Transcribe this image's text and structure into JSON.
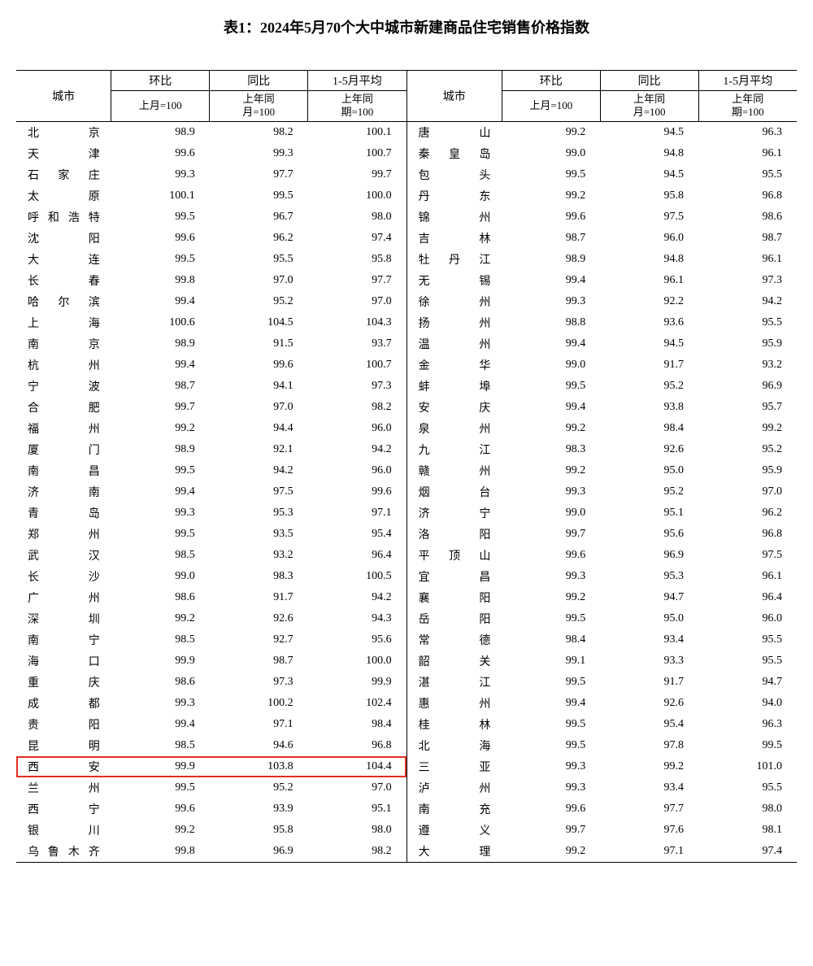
{
  "title": "表1：2024年5月70个大中城市新建商品住宅销售价格指数",
  "headers": {
    "city": "城市",
    "mom": "环比",
    "yoy": "同比",
    "avg": "1-5月平均",
    "mom_sub": "上月=100",
    "yoy_sub": "上年同\n月=100",
    "avg_sub": "上年同\n期=100"
  },
  "highlight_row_index_left": 31,
  "highlight_color": "#e03020",
  "rows_left": [
    {
      "city": "北京",
      "mom": "98.9",
      "yoy": "98.2",
      "avg": "100.1"
    },
    {
      "city": "天津",
      "mom": "99.6",
      "yoy": "99.3",
      "avg": "100.7"
    },
    {
      "city": "石家庄",
      "mom": "99.3",
      "yoy": "97.7",
      "avg": "99.7"
    },
    {
      "city": "太原",
      "mom": "100.1",
      "yoy": "99.5",
      "avg": "100.0"
    },
    {
      "city": "呼和浩特",
      "mom": "99.5",
      "yoy": "96.7",
      "avg": "98.0"
    },
    {
      "city": "沈阳",
      "mom": "99.6",
      "yoy": "96.2",
      "avg": "97.4"
    },
    {
      "city": "大连",
      "mom": "99.5",
      "yoy": "95.5",
      "avg": "95.8"
    },
    {
      "city": "长春",
      "mom": "99.8",
      "yoy": "97.0",
      "avg": "97.7"
    },
    {
      "city": "哈尔滨",
      "mom": "99.4",
      "yoy": "95.2",
      "avg": "97.0"
    },
    {
      "city": "上海",
      "mom": "100.6",
      "yoy": "104.5",
      "avg": "104.3"
    },
    {
      "city": "南京",
      "mom": "98.9",
      "yoy": "91.5",
      "avg": "93.7"
    },
    {
      "city": "杭州",
      "mom": "99.4",
      "yoy": "99.6",
      "avg": "100.7"
    },
    {
      "city": "宁波",
      "mom": "98.7",
      "yoy": "94.1",
      "avg": "97.3"
    },
    {
      "city": "合肥",
      "mom": "99.7",
      "yoy": "97.0",
      "avg": "98.2"
    },
    {
      "city": "福州",
      "mom": "99.2",
      "yoy": "94.4",
      "avg": "96.0"
    },
    {
      "city": "厦门",
      "mom": "98.9",
      "yoy": "92.1",
      "avg": "94.2"
    },
    {
      "city": "南昌",
      "mom": "99.5",
      "yoy": "94.2",
      "avg": "96.0"
    },
    {
      "city": "济南",
      "mom": "99.4",
      "yoy": "97.5",
      "avg": "99.6"
    },
    {
      "city": "青岛",
      "mom": "99.3",
      "yoy": "95.3",
      "avg": "97.1"
    },
    {
      "city": "郑州",
      "mom": "99.5",
      "yoy": "93.5",
      "avg": "95.4"
    },
    {
      "city": "武汉",
      "mom": "98.5",
      "yoy": "93.2",
      "avg": "96.4"
    },
    {
      "city": "长沙",
      "mom": "99.0",
      "yoy": "98.3",
      "avg": "100.5"
    },
    {
      "city": "广州",
      "mom": "98.6",
      "yoy": "91.7",
      "avg": "94.2"
    },
    {
      "city": "深圳",
      "mom": "99.2",
      "yoy": "92.6",
      "avg": "94.3"
    },
    {
      "city": "南宁",
      "mom": "98.5",
      "yoy": "92.7",
      "avg": "95.6"
    },
    {
      "city": "海口",
      "mom": "99.9",
      "yoy": "98.7",
      "avg": "100.0"
    },
    {
      "city": "重庆",
      "mom": "98.6",
      "yoy": "97.3",
      "avg": "99.9"
    },
    {
      "city": "成都",
      "mom": "99.3",
      "yoy": "100.2",
      "avg": "102.4"
    },
    {
      "city": "贵阳",
      "mom": "99.4",
      "yoy": "97.1",
      "avg": "98.4"
    },
    {
      "city": "昆明",
      "mom": "98.5",
      "yoy": "94.6",
      "avg": "96.8"
    },
    {
      "city": "西安",
      "mom": "99.9",
      "yoy": "103.8",
      "avg": "104.4"
    },
    {
      "city": "兰州",
      "mom": "99.5",
      "yoy": "95.2",
      "avg": "97.0"
    },
    {
      "city": "西宁",
      "mom": "99.6",
      "yoy": "93.9",
      "avg": "95.1"
    },
    {
      "city": "银川",
      "mom": "99.2",
      "yoy": "95.8",
      "avg": "98.0"
    },
    {
      "city": "乌鲁木齐",
      "mom": "99.8",
      "yoy": "96.9",
      "avg": "98.2"
    }
  ],
  "rows_right": [
    {
      "city": "唐山",
      "mom": "99.2",
      "yoy": "94.5",
      "avg": "96.3"
    },
    {
      "city": "秦皇岛",
      "mom": "99.0",
      "yoy": "94.8",
      "avg": "96.1"
    },
    {
      "city": "包头",
      "mom": "99.5",
      "yoy": "94.5",
      "avg": "95.5"
    },
    {
      "city": "丹东",
      "mom": "99.2",
      "yoy": "95.8",
      "avg": "96.8"
    },
    {
      "city": "锦州",
      "mom": "99.6",
      "yoy": "97.5",
      "avg": "98.6"
    },
    {
      "city": "吉林",
      "mom": "98.7",
      "yoy": "96.0",
      "avg": "98.7"
    },
    {
      "city": "牡丹江",
      "mom": "98.9",
      "yoy": "94.8",
      "avg": "96.1"
    },
    {
      "city": "无锡",
      "mom": "99.4",
      "yoy": "96.1",
      "avg": "97.3"
    },
    {
      "city": "徐州",
      "mom": "99.3",
      "yoy": "92.2",
      "avg": "94.2"
    },
    {
      "city": "扬州",
      "mom": "98.8",
      "yoy": "93.6",
      "avg": "95.5"
    },
    {
      "city": "温州",
      "mom": "99.4",
      "yoy": "94.5",
      "avg": "95.9"
    },
    {
      "city": "金华",
      "mom": "99.0",
      "yoy": "91.7",
      "avg": "93.2"
    },
    {
      "city": "蚌埠",
      "mom": "99.5",
      "yoy": "95.2",
      "avg": "96.9"
    },
    {
      "city": "安庆",
      "mom": "99.4",
      "yoy": "93.8",
      "avg": "95.7"
    },
    {
      "city": "泉州",
      "mom": "99.2",
      "yoy": "98.4",
      "avg": "99.2"
    },
    {
      "city": "九江",
      "mom": "98.3",
      "yoy": "92.6",
      "avg": "95.2"
    },
    {
      "city": "赣州",
      "mom": "99.2",
      "yoy": "95.0",
      "avg": "95.9"
    },
    {
      "city": "烟台",
      "mom": "99.3",
      "yoy": "95.2",
      "avg": "97.0"
    },
    {
      "city": "济宁",
      "mom": "99.0",
      "yoy": "95.1",
      "avg": "96.2"
    },
    {
      "city": "洛阳",
      "mom": "99.7",
      "yoy": "95.6",
      "avg": "96.8"
    },
    {
      "city": "平顶山",
      "mom": "99.6",
      "yoy": "96.9",
      "avg": "97.5"
    },
    {
      "city": "宜昌",
      "mom": "99.3",
      "yoy": "95.3",
      "avg": "96.1"
    },
    {
      "city": "襄阳",
      "mom": "99.2",
      "yoy": "94.7",
      "avg": "96.4"
    },
    {
      "city": "岳阳",
      "mom": "99.5",
      "yoy": "95.0",
      "avg": "96.0"
    },
    {
      "city": "常德",
      "mom": "98.4",
      "yoy": "93.4",
      "avg": "95.5"
    },
    {
      "city": "韶关",
      "mom": "99.1",
      "yoy": "93.3",
      "avg": "95.5"
    },
    {
      "city": "湛江",
      "mom": "99.5",
      "yoy": "91.7",
      "avg": "94.7"
    },
    {
      "city": "惠州",
      "mom": "99.4",
      "yoy": "92.6",
      "avg": "94.0"
    },
    {
      "city": "桂林",
      "mom": "99.5",
      "yoy": "95.4",
      "avg": "96.3"
    },
    {
      "city": "北海",
      "mom": "99.5",
      "yoy": "97.8",
      "avg": "99.5"
    },
    {
      "city": "三亚",
      "mom": "99.3",
      "yoy": "99.2",
      "avg": "101.0"
    },
    {
      "city": "泸州",
      "mom": "99.3",
      "yoy": "93.4",
      "avg": "95.5"
    },
    {
      "city": "南充",
      "mom": "99.6",
      "yoy": "97.7",
      "avg": "98.0"
    },
    {
      "city": "遵义",
      "mom": "99.7",
      "yoy": "97.6",
      "avg": "98.1"
    },
    {
      "city": "大理",
      "mom": "99.2",
      "yoy": "97.1",
      "avg": "97.4"
    }
  ]
}
